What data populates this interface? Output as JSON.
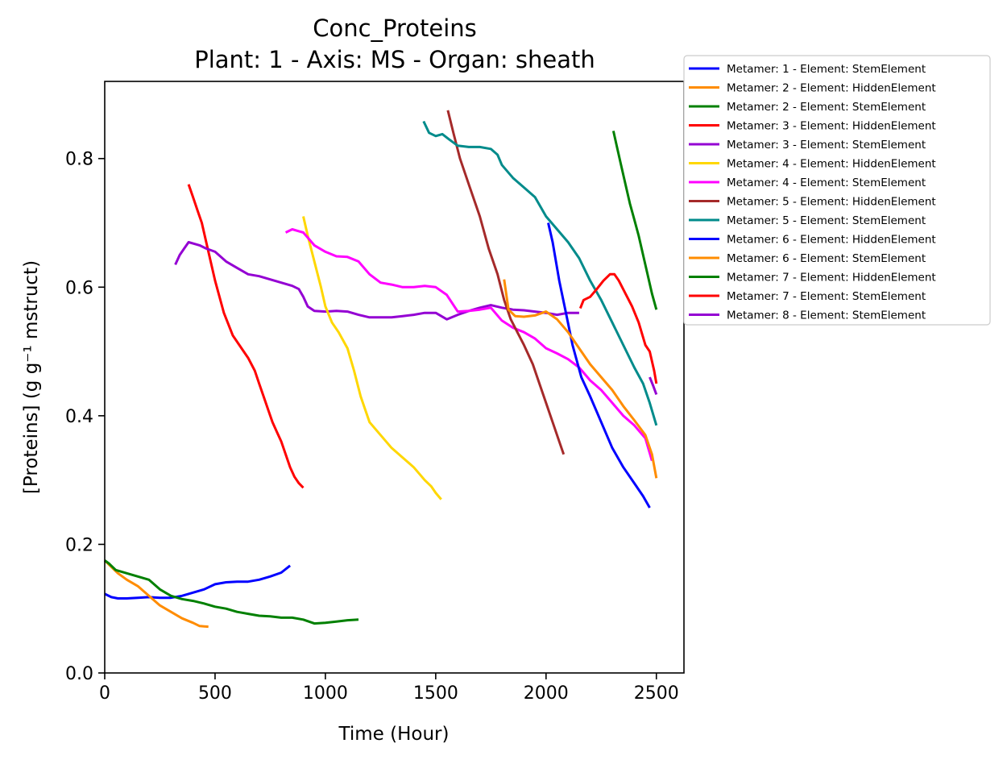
{
  "chart_data": {
    "type": "line",
    "title": "Conc_Proteins",
    "subtitle": "Plant: 1 - Axis: MS - Organ: sheath",
    "xlabel": "Time (Hour)",
    "ylabel": "[Proteins] (g g⁻¹ mstruct)",
    "xlim": [
      0,
      2625
    ],
    "ylim": [
      0,
      0.92
    ],
    "xticks": [
      0,
      500,
      1000,
      1500,
      2000,
      2500
    ],
    "xtick_labels": [
      "0",
      "500",
      "1000",
      "1500",
      "2000",
      "2500"
    ],
    "yticks": [
      0.0,
      0.2,
      0.4,
      0.6,
      0.8
    ],
    "ytick_labels": [
      "0.0",
      "0.2",
      "0.4",
      "0.6",
      "0.8"
    ],
    "grid": false,
    "legend_position": "outside-top-right",
    "series": [
      {
        "name": "Metamer: 1 - Element: StemElement",
        "color": "#0000ff",
        "x": [
          0,
          30,
          60,
          100,
          150,
          200,
          250,
          300,
          350,
          400,
          450,
          500,
          550,
          600,
          650,
          700,
          750,
          800,
          840
        ],
        "y": [
          0.123,
          0.118,
          0.116,
          0.116,
          0.117,
          0.118,
          0.117,
          0.117,
          0.12,
          0.125,
          0.13,
          0.138,
          0.141,
          0.142,
          0.142,
          0.145,
          0.15,
          0.156,
          0.167
        ]
      },
      {
        "name": "Metamer: 2 - Element: HiddenElement",
        "color": "#ff8c00",
        "x": [
          0,
          30,
          60,
          100,
          150,
          200,
          250,
          300,
          350,
          400,
          430,
          470
        ],
        "y": [
          0.175,
          0.165,
          0.155,
          0.145,
          0.135,
          0.12,
          0.105,
          0.095,
          0.085,
          0.078,
          0.073,
          0.072
        ]
      },
      {
        "name": "Metamer: 2 - Element: StemElement",
        "color": "#008000",
        "x": [
          0,
          20,
          50,
          100,
          150,
          200,
          250,
          300,
          350,
          400,
          450,
          500,
          550,
          600,
          650,
          700,
          750,
          800,
          850,
          900,
          950,
          1000,
          1050,
          1100,
          1150
        ],
        "y": [
          0.175,
          0.17,
          0.16,
          0.155,
          0.15,
          0.145,
          0.13,
          0.12,
          0.115,
          0.112,
          0.108,
          0.103,
          0.1,
          0.095,
          0.092,
          0.089,
          0.088,
          0.086,
          0.086,
          0.083,
          0.077,
          0.078,
          0.08,
          0.082,
          0.083
        ]
      },
      {
        "name": "Metamer: 3 - Element: HiddenElement",
        "color": "#ff0000",
        "x": [
          380,
          400,
          420,
          440,
          460,
          480,
          500,
          540,
          580,
          620,
          650,
          680,
          700,
          720,
          740,
          760,
          780,
          800,
          820,
          840,
          860,
          880,
          900
        ],
        "y": [
          0.76,
          0.74,
          0.72,
          0.7,
          0.67,
          0.64,
          0.61,
          0.56,
          0.525,
          0.505,
          0.49,
          0.47,
          0.45,
          0.43,
          0.41,
          0.39,
          0.375,
          0.36,
          0.34,
          0.32,
          0.305,
          0.295,
          0.288
        ]
      },
      {
        "name": "Metamer: 3 - Element: StemElement",
        "color": "#9400d3",
        "x": [
          320,
          340,
          360,
          380,
          400,
          430,
          460,
          500,
          550,
          600,
          650,
          700,
          750,
          800,
          850,
          880,
          900,
          920,
          950,
          1000,
          1050,
          1100,
          1150,
          1200,
          1250,
          1300,
          1350,
          1400,
          1450,
          1500,
          1550,
          1600,
          1650,
          1700,
          1750,
          1800,
          1850,
          1900,
          1950,
          2000,
          2050,
          2100,
          2150
        ],
        "y": [
          0.635,
          0.65,
          0.66,
          0.67,
          0.668,
          0.665,
          0.66,
          0.655,
          0.64,
          0.63,
          0.62,
          0.617,
          0.612,
          0.607,
          0.602,
          0.597,
          0.585,
          0.57,
          0.563,
          0.562,
          0.563,
          0.562,
          0.557,
          0.553,
          0.553,
          0.553,
          0.555,
          0.557,
          0.56,
          0.56,
          0.55,
          0.557,
          0.563,
          0.568,
          0.572,
          0.568,
          0.565,
          0.564,
          0.562,
          0.56,
          0.557,
          0.56,
          0.56
        ]
      },
      {
        "name": "Metamer: 4 - Element: HiddenElement",
        "color": "#ffd700",
        "x": [
          900,
          920,
          950,
          980,
          1000,
          1030,
          1060,
          1100,
          1130,
          1160,
          1200,
          1250,
          1300,
          1350,
          1400,
          1450,
          1480,
          1500,
          1525
        ],
        "y": [
          0.71,
          0.68,
          0.64,
          0.6,
          0.57,
          0.545,
          0.53,
          0.505,
          0.47,
          0.43,
          0.39,
          0.37,
          0.35,
          0.335,
          0.32,
          0.3,
          0.29,
          0.28,
          0.27
        ]
      },
      {
        "name": "Metamer: 4 - Element: StemElement",
        "color": "#ff00ff",
        "x": [
          820,
          850,
          880,
          900,
          950,
          1000,
          1050,
          1100,
          1150,
          1200,
          1250,
          1300,
          1350,
          1400,
          1450,
          1500,
          1550,
          1600,
          1650,
          1700,
          1750,
          1800,
          1850,
          1900,
          1950,
          2000,
          2050,
          2100,
          2150,
          2200,
          2250,
          2300,
          2350,
          2400,
          2450,
          2480
        ],
        "y": [
          0.685,
          0.69,
          0.687,
          0.685,
          0.665,
          0.655,
          0.648,
          0.647,
          0.64,
          0.62,
          0.607,
          0.604,
          0.6,
          0.6,
          0.602,
          0.6,
          0.588,
          0.562,
          0.563,
          0.565,
          0.568,
          0.548,
          0.537,
          0.53,
          0.52,
          0.505,
          0.497,
          0.488,
          0.475,
          0.455,
          0.44,
          0.42,
          0.4,
          0.385,
          0.365,
          0.33
        ]
      },
      {
        "name": "Metamer: 5 - Element: HiddenElement",
        "color": "#a52a2a",
        "x": [
          1555,
          1580,
          1610,
          1650,
          1700,
          1740,
          1780,
          1810,
          1840,
          1870,
          1900,
          1940,
          1970,
          2000,
          2030,
          2060,
          2080
        ],
        "y": [
          0.875,
          0.84,
          0.8,
          0.76,
          0.71,
          0.66,
          0.62,
          0.58,
          0.55,
          0.53,
          0.51,
          0.48,
          0.45,
          0.42,
          0.39,
          0.36,
          0.34
        ]
      },
      {
        "name": "Metamer: 5 - Element: StemElement",
        "color": "#008b8b",
        "x": [
          1445,
          1470,
          1500,
          1530,
          1560,
          1600,
          1650,
          1700,
          1750,
          1780,
          1800,
          1850,
          1900,
          1950,
          2000,
          2050,
          2100,
          2150,
          2200,
          2250,
          2300,
          2350,
          2400,
          2440,
          2470,
          2500
        ],
        "y": [
          0.858,
          0.84,
          0.835,
          0.838,
          0.83,
          0.82,
          0.818,
          0.818,
          0.815,
          0.806,
          0.79,
          0.77,
          0.755,
          0.74,
          0.71,
          0.69,
          0.67,
          0.645,
          0.61,
          0.58,
          0.545,
          0.51,
          0.475,
          0.45,
          0.42,
          0.385
        ]
      },
      {
        "name": "Metamer: 6 - Element: HiddenElement",
        "color": "#0000ff",
        "x": [
          2010,
          2030,
          2060,
          2090,
          2120,
          2160,
          2200,
          2250,
          2300,
          2350,
          2400,
          2440,
          2470
        ],
        "y": [
          0.7,
          0.67,
          0.61,
          0.56,
          0.51,
          0.46,
          0.43,
          0.39,
          0.35,
          0.32,
          0.295,
          0.275,
          0.257
        ]
      },
      {
        "name": "Metamer: 6 - Element: StemElement",
        "color": "#ff8c00",
        "x": [
          1810,
          1830,
          1860,
          1900,
          1950,
          2000,
          2050,
          2100,
          2150,
          2200,
          2250,
          2300,
          2350,
          2400,
          2450,
          2480,
          2500
        ],
        "y": [
          0.612,
          0.565,
          0.555,
          0.554,
          0.556,
          0.562,
          0.55,
          0.53,
          0.505,
          0.48,
          0.46,
          0.44,
          0.415,
          0.393,
          0.37,
          0.34,
          0.303
        ]
      },
      {
        "name": "Metamer: 7 - Element: HiddenElement",
        "color": "#008000",
        "x": [
          2305,
          2320,
          2340,
          2360,
          2380,
          2400,
          2420,
          2440,
          2460,
          2480,
          2500
        ],
        "y": [
          0.843,
          0.82,
          0.79,
          0.76,
          0.73,
          0.705,
          0.68,
          0.65,
          0.62,
          0.59,
          0.565
        ]
      },
      {
        "name": "Metamer: 7 - Element: StemElement",
        "color": "#ff0000",
        "x": [
          2155,
          2170,
          2200,
          2230,
          2260,
          2290,
          2310,
          2330,
          2360,
          2390,
          2420,
          2450,
          2470,
          2490,
          2500
        ],
        "y": [
          0.567,
          0.58,
          0.585,
          0.597,
          0.61,
          0.62,
          0.62,
          0.61,
          0.59,
          0.57,
          0.545,
          0.51,
          0.5,
          0.47,
          0.45
        ]
      },
      {
        "name": "Metamer: 8 - Element: StemElement",
        "color": "#9400d3",
        "x": [
          2470,
          2485,
          2500
        ],
        "y": [
          0.46,
          0.447,
          0.433
        ]
      }
    ]
  }
}
